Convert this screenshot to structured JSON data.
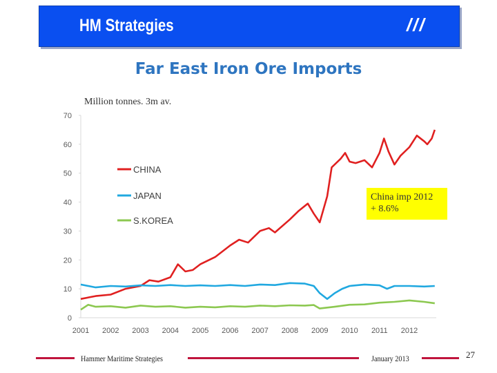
{
  "header": {
    "title": "HM Strategies",
    "mark": "///"
  },
  "annotation": {
    "line1": "China imp 2012",
    "line2": "+ 8.6%"
  },
  "footer": {
    "left": "Hammer Maritime Strategies",
    "center": "January 2013",
    "page": "27"
  },
  "colors": {
    "banner": "#0a4ff0",
    "china": "#e02020",
    "japan": "#20a8e0",
    "skorea": "#8cc850",
    "footer_line": "#c0143c"
  },
  "chart_data": {
    "type": "line",
    "title": "Far East Iron Ore Imports",
    "unit_label": "Million tonnes. 3m av.",
    "xlim": [
      2001,
      2012.9
    ],
    "ylim": [
      0,
      70
    ],
    "x_ticks": [
      "2001",
      "2002",
      "2003",
      "2004",
      "2005",
      "2006",
      "2007",
      "2008",
      "2009",
      "2010",
      "2011",
      "2012"
    ],
    "y_ticks": [
      "0",
      "10",
      "20",
      "30",
      "40",
      "50",
      "60",
      "70"
    ],
    "legend": "left",
    "series": [
      {
        "name": "CHINA",
        "color": "#e02020",
        "points": [
          [
            2001,
            6.5
          ],
          [
            2001.5,
            7.5
          ],
          [
            2002,
            8
          ],
          [
            2002.5,
            10
          ],
          [
            2003,
            11
          ],
          [
            2003.3,
            13
          ],
          [
            2003.6,
            12.5
          ],
          [
            2004,
            14
          ],
          [
            2004.25,
            18.5
          ],
          [
            2004.5,
            16
          ],
          [
            2004.75,
            16.5
          ],
          [
            2005,
            18.5
          ],
          [
            2005.5,
            21
          ],
          [
            2006,
            25
          ],
          [
            2006.3,
            27
          ],
          [
            2006.6,
            26
          ],
          [
            2007,
            30
          ],
          [
            2007.3,
            31
          ],
          [
            2007.5,
            29.5
          ],
          [
            2008,
            34
          ],
          [
            2008.3,
            37
          ],
          [
            2008.6,
            39.5
          ],
          [
            2008.8,
            36
          ],
          [
            2009,
            33
          ],
          [
            2009.25,
            42
          ],
          [
            2009.4,
            52
          ],
          [
            2009.7,
            55
          ],
          [
            2009.85,
            57
          ],
          [
            2010,
            54
          ],
          [
            2010.2,
            53.5
          ],
          [
            2010.5,
            54.5
          ],
          [
            2010.75,
            52
          ],
          [
            2011,
            57
          ],
          [
            2011.15,
            62
          ],
          [
            2011.3,
            57.5
          ],
          [
            2011.5,
            53
          ],
          [
            2011.7,
            56
          ],
          [
            2012,
            59
          ],
          [
            2012.25,
            63
          ],
          [
            2012.5,
            61
          ],
          [
            2012.6,
            60
          ],
          [
            2012.75,
            62
          ],
          [
            2012.85,
            65
          ]
        ]
      },
      {
        "name": "JAPAN",
        "color": "#20a8e0",
        "points": [
          [
            2001,
            11.5
          ],
          [
            2001.5,
            10.5
          ],
          [
            2002,
            11
          ],
          [
            2002.5,
            10.8
          ],
          [
            2003,
            11.2
          ],
          [
            2003.5,
            11
          ],
          [
            2004,
            11.3
          ],
          [
            2004.5,
            11
          ],
          [
            2005,
            11.2
          ],
          [
            2005.5,
            11
          ],
          [
            2006,
            11.3
          ],
          [
            2006.5,
            11
          ],
          [
            2007,
            11.5
          ],
          [
            2007.5,
            11.3
          ],
          [
            2008,
            12
          ],
          [
            2008.5,
            11.8
          ],
          [
            2008.8,
            11
          ],
          [
            2009,
            8.5
          ],
          [
            2009.25,
            6.5
          ],
          [
            2009.5,
            8.5
          ],
          [
            2009.75,
            10
          ],
          [
            2010,
            11
          ],
          [
            2010.5,
            11.5
          ],
          [
            2011,
            11.2
          ],
          [
            2011.25,
            10
          ],
          [
            2011.5,
            11
          ],
          [
            2012,
            11
          ],
          [
            2012.5,
            10.8
          ],
          [
            2012.85,
            11
          ]
        ]
      },
      {
        "name": "S.KOREA",
        "color": "#8cc850",
        "points": [
          [
            2001,
            2.8
          ],
          [
            2001.25,
            4.5
          ],
          [
            2001.5,
            3.8
          ],
          [
            2002,
            4
          ],
          [
            2002.5,
            3.5
          ],
          [
            2003,
            4.2
          ],
          [
            2003.5,
            3.8
          ],
          [
            2004,
            4
          ],
          [
            2004.5,
            3.5
          ],
          [
            2005,
            3.8
          ],
          [
            2005.5,
            3.6
          ],
          [
            2006,
            4
          ],
          [
            2006.5,
            3.8
          ],
          [
            2007,
            4.2
          ],
          [
            2007.5,
            4
          ],
          [
            2008,
            4.3
          ],
          [
            2008.5,
            4.2
          ],
          [
            2008.8,
            4.4
          ],
          [
            2009,
            3.2
          ],
          [
            2009.5,
            3.8
          ],
          [
            2010,
            4.5
          ],
          [
            2010.5,
            4.6
          ],
          [
            2011,
            5.2
          ],
          [
            2011.5,
            5.5
          ],
          [
            2012,
            6
          ],
          [
            2012.5,
            5.5
          ],
          [
            2012.85,
            5
          ]
        ]
      }
    ]
  }
}
